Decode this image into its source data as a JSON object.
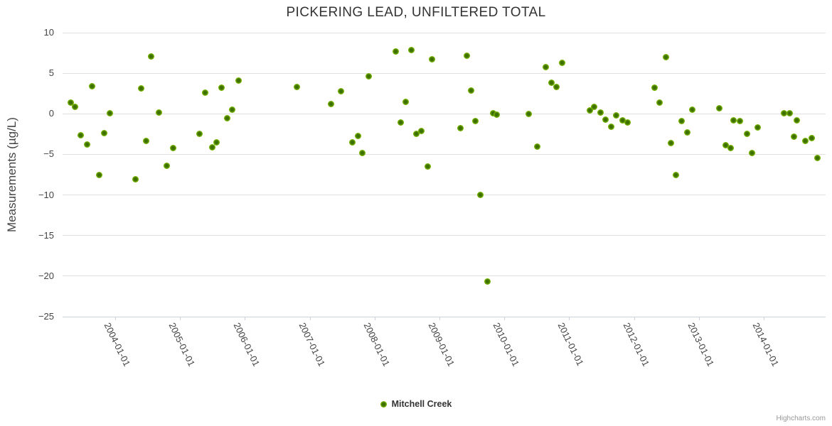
{
  "title": "PICKERING LEAD, UNFILTERED TOTAL",
  "credits": "Highcharts.com",
  "colors": {
    "marker_outer": "#7CBB02",
    "marker_inner": "#3E6F00",
    "grid_line": "#e0e0e0",
    "axis_line": "#ccd1dd",
    "title_text": "#333333",
    "axis_title_text": "#444444",
    "axis_label_text": "#444444",
    "legend_text": "#333333",
    "credits_text": "#999999"
  },
  "chart_data": {
    "type": "scatter",
    "title": "PICKERING LEAD, UNFILTERED TOTAL",
    "xlabel": "",
    "ylabel": "Measurements (µg/L)",
    "ylim": [
      -25,
      10
    ],
    "y_ticks": [
      10,
      5,
      0,
      -5,
      -10,
      -15,
      -20,
      -25
    ],
    "x_ticks": [
      "2004-01-01",
      "2005-01-01",
      "2006-01-01",
      "2007-01-01",
      "2008-01-01",
      "2009-01-01",
      "2010-01-01",
      "2011-01-01",
      "2012-01-01",
      "2013-01-01",
      "2014-01-01"
    ],
    "grid": "horizontal-only",
    "legend_position": "bottom-center",
    "series": [
      {
        "name": "Mitchell Creek",
        "color": "#7CBB02",
        "points": [
          [
            "2003-04-24",
            1.4
          ],
          [
            "2003-05-18",
            0.9
          ],
          [
            "2003-06-21",
            -2.6
          ],
          [
            "2003-07-25",
            -3.8
          ],
          [
            "2003-08-22",
            3.4
          ],
          [
            "2003-10-02",
            -7.5
          ],
          [
            "2003-10-29",
            -2.4
          ],
          [
            "2003-12-01",
            0.1
          ],
          [
            "2004-04-22",
            -8.1
          ],
          [
            "2004-05-25",
            3.1
          ],
          [
            "2004-06-22",
            -3.3
          ],
          [
            "2004-07-21",
            7.1
          ],
          [
            "2004-09-02",
            0.2
          ],
          [
            "2004-10-19",
            -6.4
          ],
          [
            "2004-11-25",
            -4.2
          ],
          [
            "2005-04-20",
            -2.5
          ],
          [
            "2005-05-20",
            2.6
          ],
          [
            "2005-07-01",
            -4.1
          ],
          [
            "2005-07-22",
            -3.5
          ],
          [
            "2005-08-20",
            3.2
          ],
          [
            "2005-09-23",
            -0.5
          ],
          [
            "2005-10-20",
            0.5
          ],
          [
            "2005-11-28",
            4.1
          ],
          [
            "2006-10-20",
            3.3
          ],
          [
            "2007-04-30",
            1.2
          ],
          [
            "2007-06-26",
            2.8
          ],
          [
            "2007-08-28",
            -3.5
          ],
          [
            "2007-09-28",
            -2.7
          ],
          [
            "2007-10-25",
            -4.8
          ],
          [
            "2007-11-30",
            4.6
          ],
          [
            "2008-04-28",
            7.7
          ],
          [
            "2008-05-28",
            -1.1
          ],
          [
            "2008-06-25",
            1.5
          ],
          [
            "2008-07-24",
            7.9
          ],
          [
            "2008-08-25",
            -2.5
          ],
          [
            "2008-09-21",
            -2.1
          ],
          [
            "2008-10-26",
            -6.5
          ],
          [
            "2008-11-21",
            6.7
          ],
          [
            "2009-04-26",
            -1.8
          ],
          [
            "2009-06-01",
            7.2
          ],
          [
            "2009-06-26",
            2.9
          ],
          [
            "2009-07-20",
            -0.9
          ],
          [
            "2009-08-19",
            -10.0
          ],
          [
            "2009-09-26",
            -20.7
          ],
          [
            "2009-10-28",
            0.1
          ],
          [
            "2009-11-21",
            -0.1
          ],
          [
            "2010-05-18",
            0.0
          ],
          [
            "2010-07-02",
            -4.0
          ],
          [
            "2010-08-20",
            5.8
          ],
          [
            "2010-09-25",
            3.8
          ],
          [
            "2010-10-22",
            3.3
          ],
          [
            "2010-11-21",
            6.3
          ],
          [
            "2011-04-28",
            0.4
          ],
          [
            "2011-05-21",
            0.9
          ],
          [
            "2011-06-27",
            0.2
          ],
          [
            "2011-07-24",
            -0.7
          ],
          [
            "2011-08-24",
            -1.6
          ],
          [
            "2011-09-21",
            -0.2
          ],
          [
            "2011-10-29",
            -0.8
          ],
          [
            "2011-11-26",
            -1.1
          ],
          [
            "2012-04-26",
            3.2
          ],
          [
            "2012-05-25",
            1.4
          ],
          [
            "2012-06-27",
            7.0
          ],
          [
            "2012-07-27",
            -3.6
          ],
          [
            "2012-08-24",
            -7.5
          ],
          [
            "2012-09-26",
            -0.9
          ],
          [
            "2012-10-28",
            -2.3
          ],
          [
            "2012-11-25",
            0.5
          ],
          [
            "2013-04-23",
            0.7
          ],
          [
            "2013-05-30",
            -3.9
          ],
          [
            "2013-06-27",
            -4.2
          ],
          [
            "2013-07-15",
            -0.8
          ],
          [
            "2013-08-21",
            -0.9
          ],
          [
            "2013-09-27",
            -2.5
          ],
          [
            "2013-10-25",
            -4.8
          ],
          [
            "2013-11-26",
            -1.7
          ],
          [
            "2014-04-23",
            0.1
          ],
          [
            "2014-05-25",
            0.1
          ],
          [
            "2014-06-19",
            -2.8
          ],
          [
            "2014-07-06",
            -0.8
          ],
          [
            "2014-08-21",
            -3.3
          ],
          [
            "2014-09-26",
            -3.0
          ],
          [
            "2014-10-29",
            -5.4
          ]
        ]
      }
    ]
  }
}
